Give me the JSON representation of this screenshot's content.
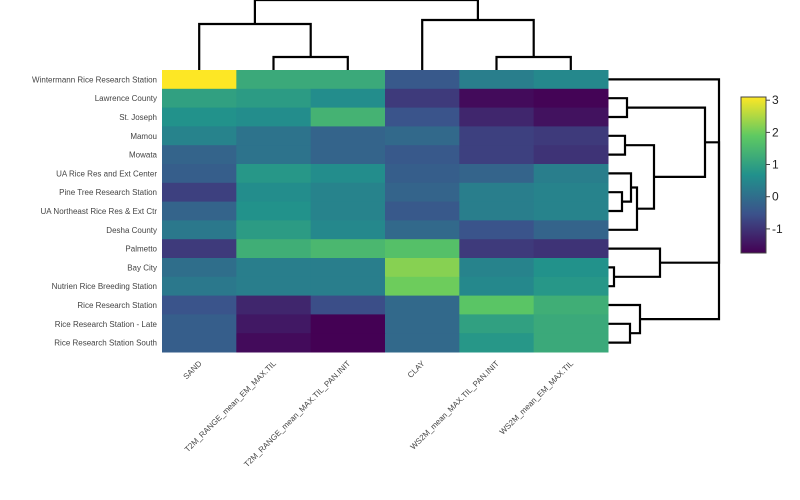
{
  "chart_data": {
    "type": "heatmap",
    "title": "",
    "xlabel": "",
    "ylabel": "",
    "colorscale": "viridis",
    "colorscale_colors": [
      "#440154",
      "#3b528b",
      "#21918c",
      "#5ec962",
      "#fde725"
    ],
    "zlim": [
      -1.75,
      3.1
    ],
    "colorbar_ticks": [
      {
        "value": 3,
        "label": "3"
      },
      {
        "value": 2,
        "label": "2"
      },
      {
        "value": 1,
        "label": "1"
      },
      {
        "value": 0,
        "label": "0"
      },
      {
        "value": -1,
        "label": "-1"
      }
    ],
    "columns": [
      "SAND",
      "T2M_RANGE_mean_EM_MAX.TIL",
      "T2M_RANGE_mean_MAX.TIL_PAN.INIT",
      "CLAY",
      "WS2M_mean_MAX.TIL_PAN.INIT",
      "WS2M_mean_EM_MAX.TIL"
    ],
    "rows": [
      "Wintermann Rice Research Station",
      "Lawrence County",
      "St. Joseph",
      "Mamou",
      "Mowata",
      "UA Rice Res and Ext Center",
      "Pine Tree Research Station",
      "UA Northeast Rice Res & Ext Ctr",
      "Desha County",
      "Palmetto",
      "Bay City",
      "Nutrien Rice Breeding Station",
      "Rice Research Station",
      "Rice Research Station - Late",
      "Rice Research Station South"
    ],
    "values": [
      [
        3.1,
        1.2,
        1.2,
        -0.4,
        0.3,
        0.5
      ],
      [
        1.0,
        0.9,
        0.6,
        -0.9,
        -1.6,
        -1.7
      ],
      [
        0.7,
        0.6,
        1.4,
        -0.5,
        -1.2,
        -1.5
      ],
      [
        0.4,
        0.1,
        -0.2,
        -0.1,
        -0.8,
        -0.9
      ],
      [
        -0.2,
        0.1,
        -0.2,
        -0.4,
        -0.8,
        -1.0
      ],
      [
        -0.3,
        0.8,
        0.6,
        -0.3,
        -0.2,
        0.3
      ],
      [
        -0.8,
        0.6,
        0.4,
        -0.2,
        0.3,
        0.4
      ],
      [
        -0.2,
        0.7,
        0.4,
        -0.4,
        0.3,
        0.4
      ],
      [
        0.2,
        0.9,
        0.5,
        -0.1,
        -0.5,
        -0.2
      ],
      [
        -0.9,
        1.3,
        1.5,
        1.7,
        -0.9,
        -1.0
      ],
      [
        0.0,
        0.3,
        0.3,
        2.2,
        0.4,
        0.7
      ],
      [
        0.2,
        0.3,
        0.3,
        2.0,
        0.5,
        0.8
      ],
      [
        -0.5,
        -1.2,
        -0.6,
        -0.1,
        1.8,
        1.3
      ],
      [
        -0.3,
        -1.4,
        -1.75,
        -0.1,
        1.0,
        1.2
      ],
      [
        -0.3,
        -1.6,
        -1.75,
        -0.1,
        0.8,
        1.2
      ]
    ]
  }
}
